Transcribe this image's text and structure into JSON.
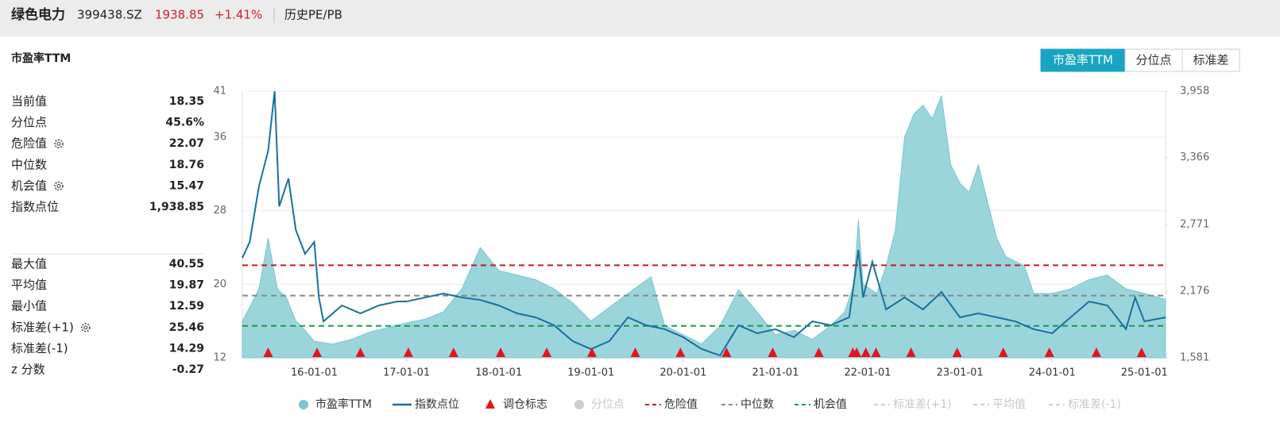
{
  "header": {
    "name": "绿色电力",
    "code": "399438.SZ",
    "price": "1938.85",
    "change": "+1.41%",
    "tab": "历史PE/PB"
  },
  "panel_title": "市盈率TTM",
  "buttons": [
    "市盈率TTM",
    "分位点",
    "标准差"
  ],
  "stats_top": [
    {
      "label": "当前值",
      "value": "18.35"
    },
    {
      "label": "分位点",
      "value": "45.6%"
    },
    {
      "label": "危险值",
      "value": "22.07",
      "gear": true
    },
    {
      "label": "中位数",
      "value": "18.76"
    },
    {
      "label": "机会值",
      "value": "15.47",
      "gear": true
    },
    {
      "label": "指数点位",
      "value": "1,938.85"
    }
  ],
  "stats_bottom": [
    {
      "label": "最大值",
      "value": "40.55"
    },
    {
      "label": "平均值",
      "value": "19.87"
    },
    {
      "label": "最小值",
      "value": "12.59"
    },
    {
      "label": "标准差(+1)",
      "value": "25.46",
      "gear": true
    },
    {
      "label": "标准差(-1)",
      "value": "14.29"
    },
    {
      "label": "z 分数",
      "value": "-0.27"
    }
  ],
  "chart_data": {
    "type": "line",
    "xlim": [
      15.22,
      25.23
    ],
    "xticks": [
      {
        "value": 16,
        "label": "16-01-01"
      },
      {
        "value": 17,
        "label": "17-01-01"
      },
      {
        "value": 18,
        "label": "18-01-01"
      },
      {
        "value": 19,
        "label": "19-01-01"
      },
      {
        "value": 20,
        "label": "20-01-01"
      },
      {
        "value": 21,
        "label": "21-01-01"
      },
      {
        "value": 22,
        "label": "22-01-01"
      },
      {
        "value": 23,
        "label": "23-01-01"
      },
      {
        "value": 24,
        "label": "24-01-01"
      },
      {
        "value": 25,
        "label": "25-01-01"
      }
    ],
    "ylim": [
      12,
      41
    ],
    "yticks": [
      12,
      20,
      28,
      36,
      41
    ],
    "y2lim": [
      1581,
      3958
    ],
    "y2ticks": [
      {
        "value": 1581,
        "label": "1,581"
      },
      {
        "value": 2176,
        "label": "2,176"
      },
      {
        "value": 2771,
        "label": "2,771"
      },
      {
        "value": 3366,
        "label": "3,366"
      },
      {
        "value": 3958,
        "label": "3,958"
      }
    ],
    "grid": true,
    "series": [
      {
        "name": "市盈率TTM",
        "kind": "area",
        "color": "#95d3da",
        "visible": true,
        "x": [
          15.22,
          15.3,
          15.4,
          15.5,
          15.6,
          15.7,
          15.8,
          15.9,
          16.0,
          16.2,
          16.4,
          16.6,
          16.8,
          17.0,
          17.2,
          17.4,
          17.6,
          17.8,
          18.0,
          18.2,
          18.4,
          18.6,
          18.8,
          19.0,
          19.2,
          19.4,
          19.65,
          19.8,
          20.0,
          20.2,
          20.4,
          20.6,
          20.8,
          21.0,
          21.2,
          21.4,
          21.6,
          21.75,
          21.85,
          21.9,
          21.95,
          22.1,
          22.2,
          22.3,
          22.4,
          22.5,
          22.6,
          22.7,
          22.8,
          22.9,
          23.0,
          23.1,
          23.2,
          23.3,
          23.4,
          23.5,
          23.6,
          23.7,
          23.8,
          24.0,
          24.2,
          24.4,
          24.6,
          24.8,
          25.0,
          25.23
        ],
        "values": [
          16.0,
          17.5,
          19.5,
          25,
          19.5,
          18.5,
          16,
          15,
          13.8,
          13.5,
          14,
          14.8,
          15.3,
          15.8,
          16.2,
          17,
          19.5,
          24,
          21.5,
          21,
          20.5,
          19.5,
          18,
          16,
          17.5,
          19,
          20.8,
          15.5,
          14.5,
          13.5,
          15.5,
          19.4,
          17,
          14.5,
          15,
          14,
          15.5,
          17,
          20,
          27,
          20,
          19,
          22,
          25.9,
          36,
          38.5,
          39.5,
          38,
          40.5,
          33,
          31,
          30,
          33,
          29,
          25,
          23,
          22.5,
          22,
          19,
          19,
          19.5,
          20.5,
          21,
          19.5,
          19,
          18.35
        ]
      },
      {
        "name": "指数点位",
        "kind": "line",
        "axis": "y2",
        "color": "#1b6f9e",
        "visible": true,
        "x": [
          15.22,
          15.3,
          15.4,
          15.5,
          15.57,
          15.62,
          15.72,
          15.8,
          15.9,
          16.0,
          16.05,
          16.1,
          16.3,
          16.5,
          16.7,
          16.9,
          17.0,
          17.2,
          17.4,
          17.6,
          17.8,
          18.0,
          18.2,
          18.4,
          18.6,
          18.8,
          19.0,
          19.2,
          19.4,
          19.6,
          19.8,
          20.0,
          20.2,
          20.4,
          20.6,
          20.8,
          21.0,
          21.2,
          21.4,
          21.6,
          21.8,
          21.9,
          21.95,
          22.05,
          22.2,
          22.4,
          22.6,
          22.8,
          23.0,
          23.2,
          23.4,
          23.6,
          23.8,
          24.0,
          24.2,
          24.4,
          24.6,
          24.8,
          24.9,
          25.0,
          25.23
        ],
        "values": [
          2472,
          2614,
          3109,
          3427,
          3958,
          2932,
          3180,
          2720,
          2508,
          2614,
          2119,
          1906,
          2048,
          1977,
          2048,
          2083,
          2083,
          2119,
          2154,
          2119,
          2097,
          2048,
          1977,
          1942,
          1871,
          1730,
          1659,
          1730,
          1942,
          1871,
          1836,
          1765,
          1659,
          1602,
          1871,
          1800,
          1836,
          1765,
          1906,
          1871,
          1942,
          2543,
          2119,
          2437,
          2012,
          2119,
          2012,
          2168,
          1942,
          1977,
          1942,
          1906,
          1836,
          1800,
          1942,
          2083,
          2048,
          1836,
          2119,
          1906,
          1942
        ]
      },
      {
        "name": "调仓标志",
        "kind": "marker",
        "color": "#e8121a",
        "visible": true,
        "x": [
          15.5,
          16.03,
          16.5,
          17.02,
          17.51,
          18.02,
          18.52,
          19.01,
          19.48,
          19.97,
          20.47,
          20.97,
          21.47,
          21.84,
          21.88,
          21.98,
          22.09,
          22.47,
          22.97,
          23.47,
          23.97,
          24.48,
          24.97
        ]
      },
      {
        "name": "分位点",
        "kind": "dot",
        "color": "#cccccc",
        "visible": false
      },
      {
        "name": "危险值",
        "kind": "hline",
        "color": "#c9191e",
        "value": 22.07,
        "visible": true
      },
      {
        "name": "中位数",
        "kind": "hline",
        "color": "#888888",
        "value": 18.76,
        "visible": true
      },
      {
        "name": "机会值",
        "kind": "hline",
        "color": "#1a9a4a",
        "value": 15.47,
        "visible": true
      },
      {
        "name": "标准差(+1)",
        "kind": "hline",
        "color": "#cccccc",
        "value": 25.46,
        "visible": false
      },
      {
        "name": "平均值",
        "kind": "hline",
        "color": "#cccccc",
        "value": 19.87,
        "visible": false
      },
      {
        "name": "标准差(-1)",
        "kind": "hline",
        "color": "#cccccc",
        "value": 14.29,
        "visible": false
      }
    ]
  }
}
